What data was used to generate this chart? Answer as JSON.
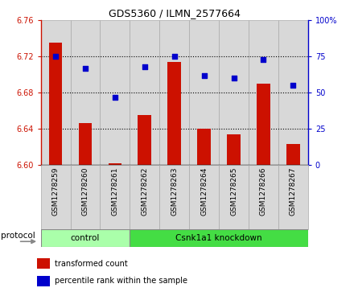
{
  "title": "GDS5360 / ILMN_2577664",
  "samples": [
    "GSM1278259",
    "GSM1278260",
    "GSM1278261",
    "GSM1278262",
    "GSM1278263",
    "GSM1278264",
    "GSM1278265",
    "GSM1278266",
    "GSM1278267"
  ],
  "transformed_count": [
    6.735,
    6.646,
    6.602,
    6.655,
    6.714,
    6.64,
    6.634,
    6.69,
    6.623
  ],
  "percentile_rank": [
    75,
    67,
    47,
    68,
    75,
    62,
    60,
    73,
    55
  ],
  "bar_color": "#cc1100",
  "dot_color": "#0000cc",
  "ylim_left": [
    6.6,
    6.76
  ],
  "ylim_right": [
    0,
    100
  ],
  "yticks_left": [
    6.6,
    6.64,
    6.68,
    6.72,
    6.76
  ],
  "yticks_right": [
    0,
    25,
    50,
    75,
    100
  ],
  "grid_values": [
    6.72,
    6.68,
    6.64
  ],
  "control_count": 3,
  "knockdown_label": "Csnk1a1 knockdown",
  "control_label": "control",
  "protocol_label": "protocol",
  "legend_bar_label": "transformed count",
  "legend_dot_label": "percentile rank within the sample",
  "bar_baseline": 6.6,
  "panel_bg": "#d8d8d8",
  "control_group_color": "#aaffaa",
  "knockdown_group_color": "#44dd44",
  "right_label_100": "100%"
}
